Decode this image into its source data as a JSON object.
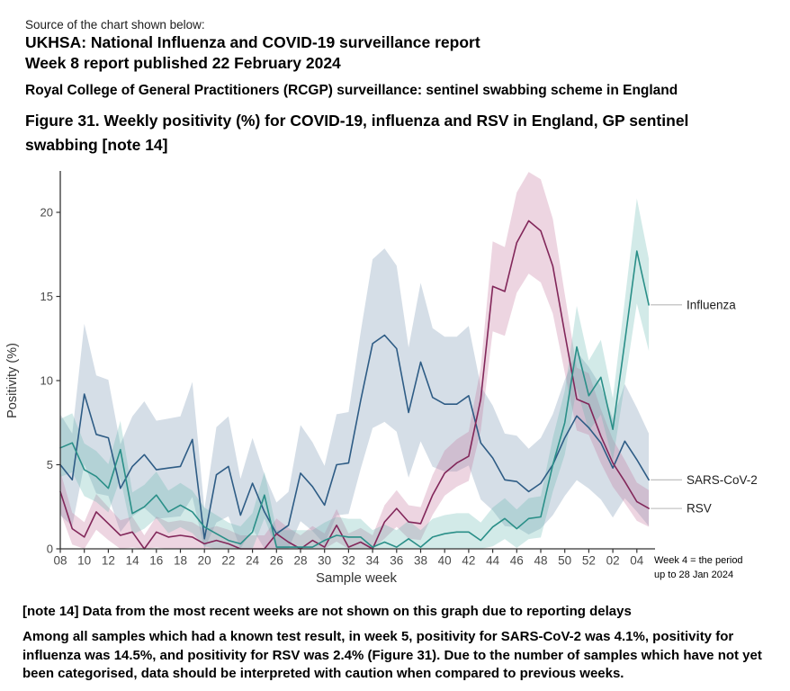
{
  "header": {
    "source_label": "Source of the chart shown below:",
    "report_title_line1": "UKHSA: National Influenza and  COVID-19 surveillance report",
    "report_title_line2": "Week 8 report published 22 February 2024",
    "scheme_subtitle": "Royal College of General Practitioners (RCGP) surveillance: sentinel swabbing scheme in England",
    "figure_title": "Figure 31. Weekly positivity (%) for COVID-19, influenza and RSV in England, GP sentinel swabbing [note 14]"
  },
  "chart_data": {
    "type": "line",
    "title": "",
    "xlabel": "Sample week",
    "ylabel": "Positivity (%)",
    "ylim": [
      0,
      22.4
    ],
    "yticks": [
      0,
      5,
      10,
      15,
      20
    ],
    "grid": false,
    "legend_position": "right-of-line-ends",
    "x_weeks": [
      "08",
      "09",
      "10",
      "11",
      "12",
      "13",
      "14",
      "15",
      "16",
      "17",
      "18",
      "19",
      "20",
      "21",
      "22",
      "23",
      "24",
      "25",
      "26",
      "27",
      "28",
      "29",
      "30",
      "31",
      "32",
      "33",
      "34",
      "35",
      "36",
      "37",
      "38",
      "39",
      "40",
      "41",
      "42",
      "43",
      "44",
      "45",
      "46",
      "47",
      "48",
      "49",
      "50",
      "51",
      "52",
      "01",
      "02",
      "03",
      "04",
      "05"
    ],
    "x_tick_labels": [
      "08",
      "10",
      "12",
      "14",
      "16",
      "18",
      "20",
      "22",
      "24",
      "26",
      "28",
      "30",
      "32",
      "34",
      "36",
      "38",
      "40",
      "42",
      "44",
      "46",
      "48",
      "50",
      "52",
      "02",
      "04"
    ],
    "annotation": {
      "line1": "Week 4 = the period",
      "line2": "up to 28 Jan 2024"
    },
    "axis_color": "#333333",
    "tick_label_color": "#4a4a4a",
    "axis_title_color": "#333333",
    "legend_text_color": "#1f1f1f",
    "legend_connector_color": "#b8b8b8",
    "draw_order": [
      1,
      2,
      0
    ],
    "series": [
      {
        "name": "Influenza",
        "color": "#2a8f88",
        "band_color": "#5fb3ab",
        "band_opacity": 0.28,
        "band": {
          "base": 1.0,
          "frac": 0.12
        },
        "values": [
          6.0,
          6.3,
          4.7,
          4.3,
          3.6,
          5.9,
          2.1,
          2.5,
          3.2,
          2.2,
          2.6,
          2.2,
          1.3,
          0.9,
          0.5,
          0.3,
          1.0,
          3.2,
          0.1,
          0.1,
          0.1,
          0.1,
          0.5,
          0.8,
          0.7,
          0.7,
          0.1,
          0.4,
          0.1,
          0.6,
          0.1,
          0.7,
          0.9,
          1.0,
          1.0,
          0.5,
          1.3,
          1.8,
          1.2,
          1.8,
          1.9,
          5.0,
          7.5,
          12.0,
          9.1,
          10.2,
          7.1,
          12.3,
          17.7,
          14.5
        ]
      },
      {
        "name": "SARS-CoV-2",
        "color": "#2e5c85",
        "band_color": "#7d97b4",
        "band_opacity": 0.32,
        "band": {
          "base": 1.6,
          "frac": 0.28
        },
        "values": [
          5.0,
          4.1,
          9.2,
          6.8,
          6.6,
          3.6,
          4.9,
          5.6,
          4.7,
          4.8,
          4.9,
          6.5,
          0.6,
          4.4,
          4.9,
          2.0,
          3.9,
          2.2,
          0.9,
          1.4,
          4.5,
          3.7,
          2.6,
          5.0,
          5.1,
          8.8,
          12.2,
          12.7,
          11.9,
          8.1,
          11.1,
          9.0,
          8.6,
          8.6,
          9.1,
          6.3,
          5.4,
          4.1,
          4.0,
          3.4,
          3.9,
          5.0,
          6.6,
          7.9,
          7.2,
          6.3,
          4.8,
          6.4,
          5.3,
          4.1
        ]
      },
      {
        "name": "RSV",
        "color": "#82275a",
        "band_color": "#c2739c",
        "band_opacity": 0.3,
        "band": {
          "base": 0.8,
          "frac": 0.12
        },
        "values": [
          3.4,
          1.2,
          0.7,
          2.2,
          1.5,
          0.8,
          1.0,
          0.0,
          1.0,
          0.7,
          0.8,
          0.7,
          0.3,
          0.5,
          0.3,
          0.0,
          0.0,
          0.0,
          0.9,
          0.4,
          0.0,
          0.5,
          0.1,
          1.4,
          0.1,
          0.4,
          0.0,
          1.6,
          2.4,
          1.6,
          1.5,
          3.2,
          4.5,
          5.1,
          5.5,
          8.9,
          15.6,
          15.3,
          18.2,
          19.5,
          18.9,
          16.8,
          12.8,
          8.9,
          8.6,
          6.7,
          5.1,
          4.0,
          2.8,
          2.4
        ]
      }
    ]
  },
  "footer": {
    "note": "[note 14] Data from the most recent weeks are not shown on this graph due to reporting delays",
    "paragraph": "Among all samples which had a known test result, in week 5, positivity for SARS-CoV-2 was 4.1%, positivity for influenza was 14.5%, and positivity for RSV was 2.4% (Figure 31). Due to the number of samples which have not yet been categorised, data should be interpreted with caution when compared to previous weeks."
  }
}
